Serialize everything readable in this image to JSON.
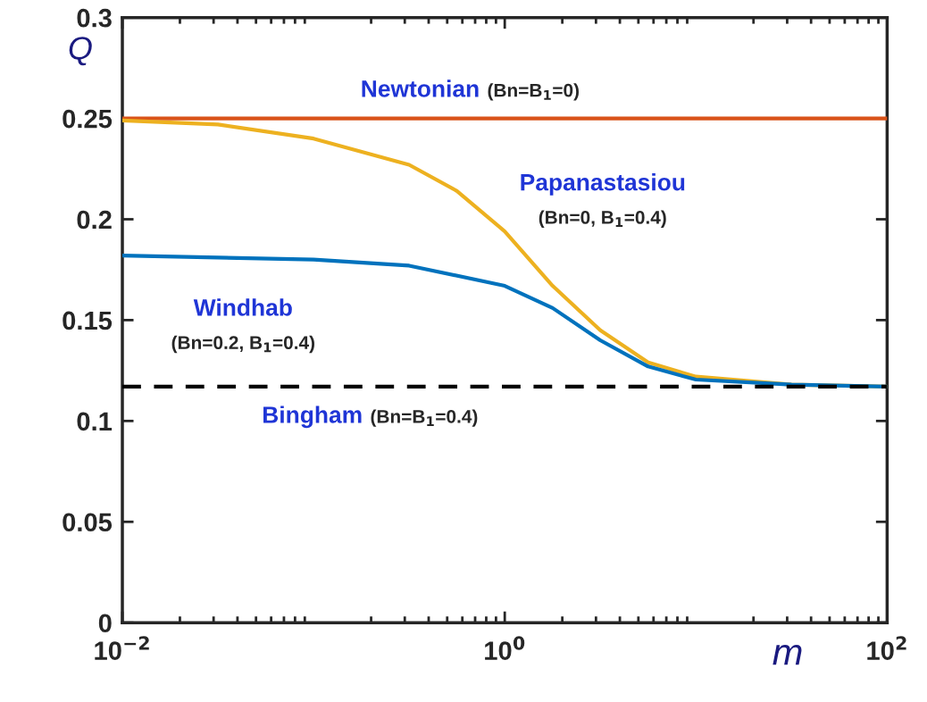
{
  "chart_data": {
    "type": "line",
    "xlabel": "m",
    "ylabel": "Q",
    "log": "x",
    "xlim": [
      0.01,
      100
    ],
    "xticks": [
      {
        "value": 0.01,
        "label": "10$^{−2}$"
      },
      {
        "value": 1,
        "label": "10$^{0}$"
      },
      {
        "value": 100,
        "label": "10$^{2}$"
      }
    ],
    "ylim": [
      0,
      0.3
    ],
    "yticks": [
      0,
      0.05,
      0.1,
      0.15,
      0.2,
      0.25,
      0.3
    ],
    "grid": false,
    "legend": false,
    "series": [
      {
        "name": "Newtonian",
        "color": "#d95319",
        "line_style": "solid",
        "x": [
          0.01,
          100
        ],
        "values": [
          0.25,
          0.25
        ]
      },
      {
        "name": "Papanastasiou",
        "color": "#edb120",
        "line_style": "solid",
        "x": [
          0.01,
          0.0316,
          0.1,
          0.316,
          0.562,
          1,
          1.78,
          3.16,
          5.62,
          10,
          31.6,
          100
        ],
        "values": [
          0.249,
          0.247,
          0.24,
          0.227,
          0.214,
          0.194,
          0.167,
          0.145,
          0.129,
          0.122,
          0.118,
          0.117
        ]
      },
      {
        "name": "Windhab",
        "color": "#0072bd",
        "line_style": "solid",
        "x": [
          0.01,
          0.1,
          0.316,
          1,
          1.78,
          3.16,
          5.62,
          10,
          31.6,
          100
        ],
        "values": [
          0.182,
          0.18,
          0.177,
          0.167,
          0.156,
          0.14,
          0.127,
          0.1205,
          0.118,
          0.117
        ]
      },
      {
        "name": "Bingham",
        "color": "#000000",
        "line_style": "dashed",
        "x": [
          0.01,
          100
        ],
        "values": [
          0.117,
          0.117
        ]
      }
    ],
    "annotations": [
      "(Bn=B$_{1}$=0)",
      "(Bn=0, B$_{1}$=0.4)",
      "(Bn=0.2, B$_{1}$=0.4)",
      "(Bn=B$_{1}$=0.4)"
    ]
  }
}
